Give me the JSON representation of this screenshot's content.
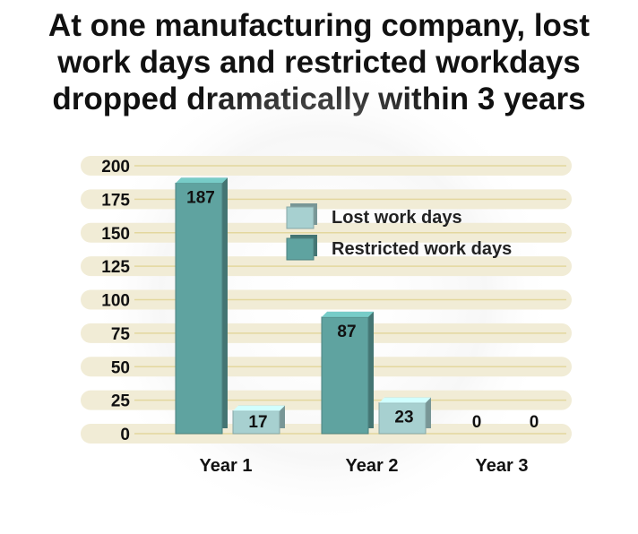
{
  "title_lines": [
    "At one manufacturing company, lost",
    "work days and restricted workdays",
    "dropped dramatically within 3 years"
  ],
  "chart_data": {
    "type": "bar",
    "categories": [
      "Year 1",
      "Year 2",
      "Year 3"
    ],
    "series": [
      {
        "name": "Restricted work days",
        "values": [
          187,
          87,
          0
        ],
        "color": "#5fa3a0"
      },
      {
        "name": "Lost work days",
        "values": [
          17,
          23,
          0
        ],
        "color": "#a7d0d0"
      }
    ],
    "ylim": [
      0,
      200
    ],
    "yticks": [
      0,
      25,
      50,
      75,
      100,
      125,
      150,
      175,
      200
    ],
    "legend": {
      "position": "top-right",
      "items": [
        "Lost work days",
        "Restricted work days"
      ]
    },
    "grid": true,
    "colors": {
      "band": "#f1ecd6",
      "gridline": "#e3d79e"
    }
  }
}
